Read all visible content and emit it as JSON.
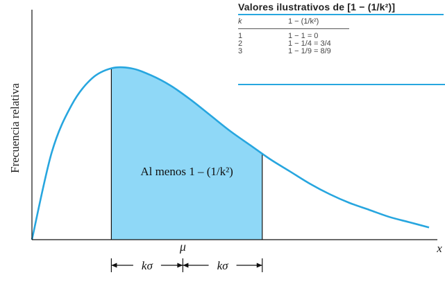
{
  "chart_data": {
    "type": "area",
    "ylabel": "Frecuencia relativa",
    "xlabel": "x",
    "mean_label": "μ",
    "region_label": "Al menos 1 – (1/k²)",
    "interval_label": "kσ",
    "interval_labels": [
      "kσ",
      "kσ"
    ],
    "x": [
      0.0,
      0.25,
      0.5,
      0.75,
      1.0,
      1.25,
      1.5,
      1.75,
      2.0,
      2.25,
      2.5,
      2.75,
      3.0,
      3.25,
      3.5,
      3.75,
      4.0,
      4.25,
      4.5,
      4.75,
      5.0
    ],
    "density": [
      0.0,
      0.5,
      0.77,
      0.92,
      0.98,
      0.98,
      0.94,
      0.88,
      0.8,
      0.71,
      0.62,
      0.54,
      0.46,
      0.39,
      0.32,
      0.26,
      0.21,
      0.17,
      0.13,
      0.1,
      0.07
    ],
    "mean": 1.9,
    "shade_range": [
      1.0,
      2.9
    ],
    "xlim": [
      0,
      5
    ],
    "ylim": [
      0,
      1.03
    ],
    "curve_color": "#27a6df",
    "shade_color": "#8fd8f7"
  },
  "table": {
    "title": "Valores ilustrativos de [1 − (1/k²)]",
    "headers": [
      "k",
      "1 − (1/k²)"
    ],
    "rows": [
      [
        "1",
        "1 − 1 = 0"
      ],
      [
        "2",
        "1 − 1/4 = 3/4"
      ],
      [
        "3",
        "1 − 1/9 = 8/9"
      ]
    ],
    "rule_color": "#27a6df"
  }
}
